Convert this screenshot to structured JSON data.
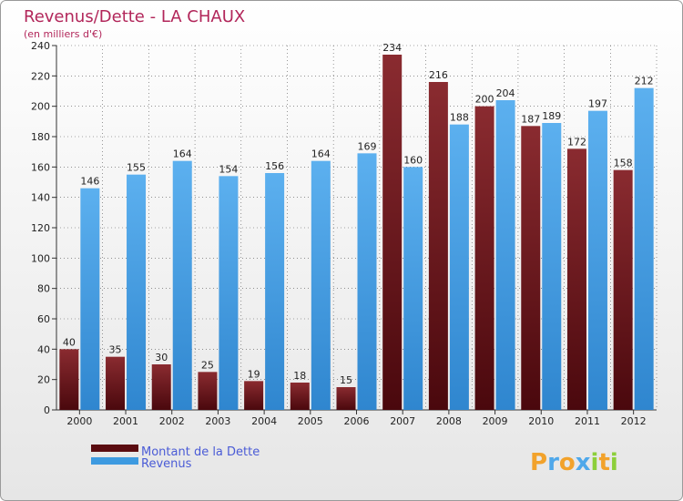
{
  "colors": {
    "debt": "#7a2226",
    "debt_dark": "#4e0a0f",
    "revenue": "#4fa8ea",
    "revenue_dark": "#2a7fc6",
    "title": "#b2265a",
    "subtitle": "#b2265a",
    "axis_text": "#222222",
    "grid": "#333333",
    "legend_text": "#4a5bd6"
  },
  "chart_data": {
    "type": "bar",
    "title": "Revenus/Dette - LA CHAUX",
    "subtitle": "(en milliers d'€)",
    "xlabel": "",
    "ylabel": "",
    "ylim": [
      0,
      240
    ],
    "yticks": [
      0,
      20,
      40,
      60,
      80,
      100,
      120,
      140,
      160,
      180,
      200,
      220,
      240
    ],
    "grid": true,
    "categories": [
      "2000",
      "2001",
      "2002",
      "2003",
      "2004",
      "2005",
      "2006",
      "2007",
      "2008",
      "2009",
      "2010",
      "2011",
      "2012"
    ],
    "series": [
      {
        "name": "Montant de la Dette",
        "key": "debt",
        "values": [
          40,
          35,
          30,
          25,
          19,
          18,
          15,
          234,
          216,
          200,
          187,
          172,
          158
        ]
      },
      {
        "name": "Revenus",
        "key": "revenue",
        "values": [
          146,
          155,
          164,
          154,
          156,
          164,
          169,
          160,
          188,
          204,
          189,
          197,
          212
        ]
      }
    ],
    "legend_position": "bottom-left"
  },
  "logo": {
    "text": "Proxiti"
  }
}
